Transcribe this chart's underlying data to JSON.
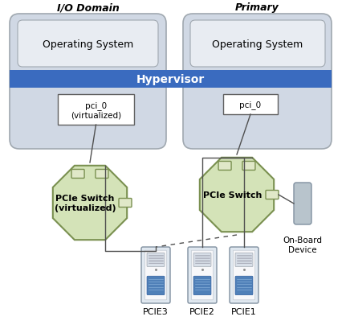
{
  "io_domain_label": "I/O Domain",
  "primary_label": "Primary",
  "hypervisor_label": "Hypervisor",
  "os_label": "Operating System",
  "pci0_virt_label": "pci_0\n(virtualized)",
  "pci0_label": "pci_0",
  "pcie_switch_virt_label": "PCIe Switch\n(virtualized)",
  "pcie_switch_label": "PCIe Switch",
  "onboard_label": "On-Board\nDevice",
  "pcie3_label": "PCIE3",
  "pcie2_label": "PCIE2",
  "pcie1_label": "PCIE1",
  "bg_color": "#ffffff",
  "domain_box_color": "#d0d8e4",
  "domain_box_edge": "#a0a8b0",
  "hypervisor_color": "#3a6bbf",
  "hypervisor_text_color": "#ffffff",
  "octa_fill": "#d4e3b8",
  "octa_edge": "#7a9050",
  "octa_port_fill": "#e0e8c8",
  "octa_port_edge": "#7a9050",
  "pci_box_fill": "#ffffff",
  "pci_box_edge": "#555555",
  "card_fill": "#e0e8f0",
  "card_edge": "#8090a0",
  "card_connector_fill": "#5080b8",
  "card_connector_lines": "#c0c8d0",
  "onboard_fill": "#b8c4cc",
  "onboard_edge": "#8090a0",
  "line_color": "#505050",
  "os_box_fill": "#e8ecf2",
  "os_box_edge": "#a0a8b0"
}
